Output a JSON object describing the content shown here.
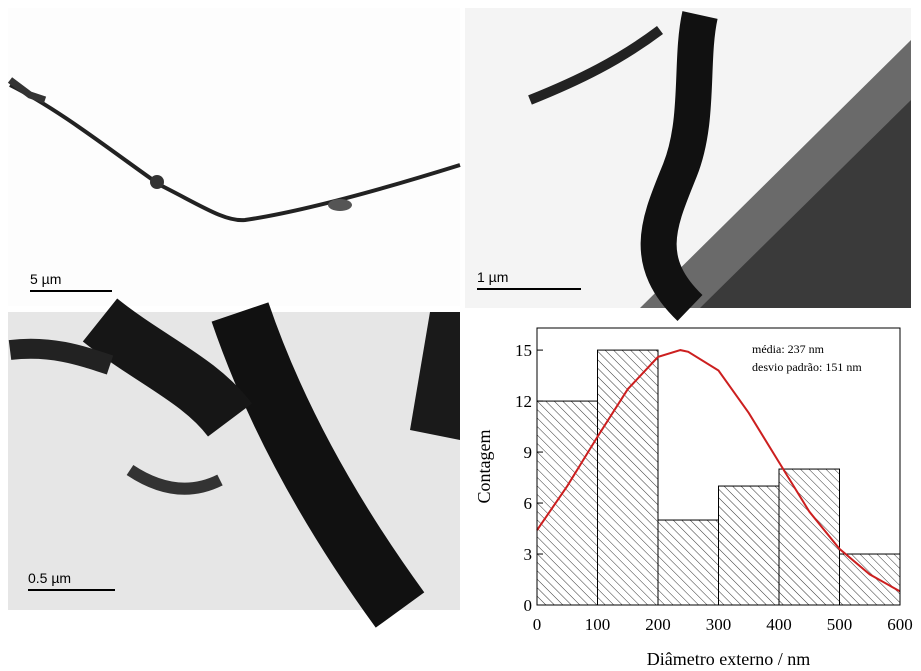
{
  "images": [
    {
      "scale_bar": "5 µm"
    },
    {
      "scale_bar": "1 µm"
    },
    {
      "scale_bar": "0.5 µm"
    }
  ],
  "chart_data": {
    "type": "histogram",
    "x_label": "Diâmetro externo / nm",
    "y_label": "Contagem",
    "annotations": [
      "média: 237 nm",
      "desvio padrão: 151 nm"
    ],
    "bins": [
      0,
      100,
      200,
      300,
      400,
      500,
      600
    ],
    "values": [
      12,
      15,
      5,
      7,
      8,
      3
    ],
    "color": "#000000",
    "fit": {
      "color": "#cc1f1f",
      "x": [
        0,
        50,
        100,
        150,
        200,
        237,
        250,
        300,
        350,
        400,
        450,
        500,
        550,
        600
      ],
      "y": [
        4.4,
        7.0,
        9.9,
        12.7,
        14.6,
        15,
        14.9,
        13.8,
        11.3,
        8.4,
        5.5,
        3.3,
        1.8,
        0.8
      ]
    },
    "xlim": [
      0,
      600
    ],
    "ylim": [
      0,
      16.3
    ],
    "xticks": [
      0,
      100,
      200,
      300,
      400,
      500,
      600
    ],
    "yticks": [
      0,
      3,
      6,
      9,
      12,
      15
    ]
  }
}
